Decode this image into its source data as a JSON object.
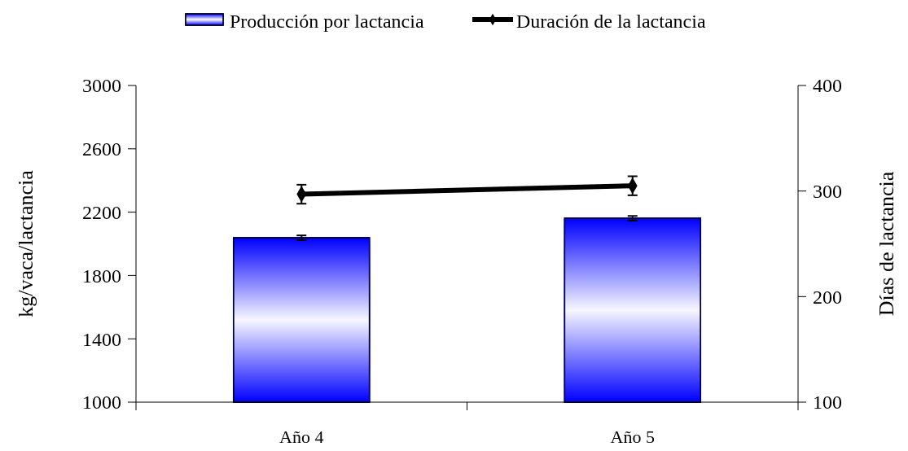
{
  "chart_data": {
    "type": "bar",
    "categories": [
      "Año 4",
      "Año 5"
    ],
    "series": [
      {
        "name": "Producción por lactancia",
        "color": "#0000ff",
        "values": [
          2038,
          2161
        ],
        "errors": [
          15,
          15
        ]
      },
      {
        "name": "Duración de la lactancia",
        "type": "line",
        "axis": "y2",
        "color": "#000000",
        "marker": "diamond",
        "values": [
          297,
          305
        ],
        "errors": [
          9,
          9
        ]
      }
    ],
    "ylabel": "kg/vaca/lactancia",
    "y2label": "Días de lactancia",
    "ylim": [
      1000,
      3000
    ],
    "yticks": [
      1000,
      1400,
      1800,
      2200,
      2600,
      3000
    ],
    "y2lim": [
      100,
      400
    ],
    "y2ticks": [
      100,
      200,
      300,
      400
    ],
    "legend": "top",
    "grid": false
  }
}
